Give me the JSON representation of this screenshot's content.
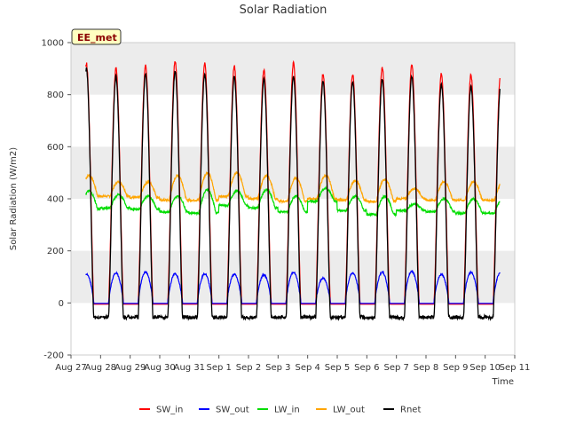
{
  "chart_data": {
    "type": "line",
    "title": "Solar Radiation",
    "xlabel": "Time",
    "ylabel": "Solar Radiation (W/m2)",
    "ylim": [
      -200,
      1000
    ],
    "xlim_days": [
      0,
      15
    ],
    "x_ticks": [
      {
        "day": 0,
        "label": "Aug 27"
      },
      {
        "day": 1,
        "label": "Aug 28"
      },
      {
        "day": 2,
        "label": "Aug 29"
      },
      {
        "day": 3,
        "label": "Aug 30"
      },
      {
        "day": 4,
        "label": "Aug 31"
      },
      {
        "day": 5,
        "label": "Sep 1"
      },
      {
        "day": 6,
        "label": "Sep 2"
      },
      {
        "day": 7,
        "label": "Sep 3"
      },
      {
        "day": 8,
        "label": "Sep 4"
      },
      {
        "day": 9,
        "label": "Sep 5"
      },
      {
        "day": 10,
        "label": "Sep 6"
      },
      {
        "day": 11,
        "label": "Sep 7"
      },
      {
        "day": 12,
        "label": "Sep 8"
      },
      {
        "day": 13,
        "label": "Sep 9"
      },
      {
        "day": 14,
        "label": "Sep 10"
      },
      {
        "day": 15,
        "label": "Sep 11"
      }
    ],
    "y_ticks": [
      -200,
      0,
      200,
      400,
      600,
      800,
      1000
    ],
    "badge": "EE_met",
    "legend_position": "bottom",
    "grid": "alternating horizontal bands",
    "series": [
      {
        "name": "SW_in",
        "color": "#ff0000",
        "daily_peak": [
          920,
          900,
          910,
          930,
          920,
          910,
          895,
          920,
          880,
          880,
          905,
          915,
          880,
          875
        ],
        "night": -5
      },
      {
        "name": "SW_out",
        "color": "#0000ff",
        "daily_peak": [
          110,
          115,
          118,
          112,
          112,
          110,
          108,
          118,
          95,
          115,
          118,
          122,
          110,
          118
        ],
        "night": -2
      },
      {
        "name": "LW_in",
        "color": "#00dd00",
        "day_level": [
          430,
          415,
          410,
          410,
          435,
          430,
          435,
          410,
          440,
          410,
          410,
          380,
          400,
          400
        ],
        "night_level": [
          360,
          365,
          360,
          350,
          345,
          375,
          365,
          350,
          390,
          355,
          340,
          355,
          350,
          345
        ]
      },
      {
        "name": "LW_out",
        "color": "#ffa500",
        "day_level": [
          490,
          465,
          465,
          490,
          500,
          500,
          490,
          480,
          490,
          470,
          475,
          440,
          465,
          465
        ],
        "night_level": [
          410,
          410,
          405,
          395,
          395,
          410,
          400,
          390,
          400,
          395,
          390,
          400,
          395,
          395
        ]
      },
      {
        "name": "Rnet",
        "color": "#000000",
        "daily_peak": [
          900,
          870,
          880,
          890,
          880,
          870,
          860,
          870,
          850,
          850,
          860,
          870,
          840,
          830
        ],
        "night": -55
      }
    ]
  }
}
